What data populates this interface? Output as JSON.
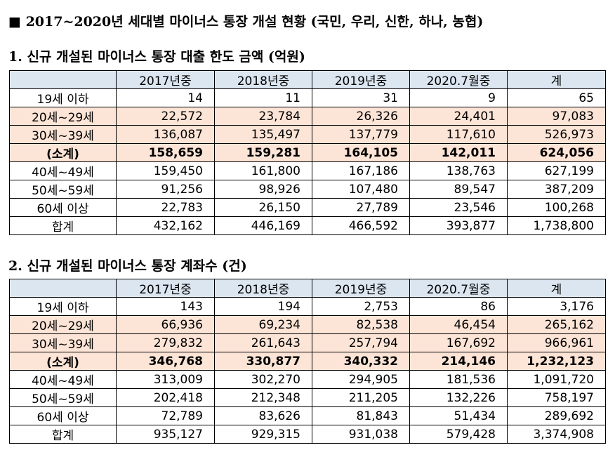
{
  "title": "■ 2017~2020년 세대별 마이너스 통장 개설 현황 (국민, 우리, 신한, 하나, 농협)",
  "tables": [
    {
      "heading": "1. 신규 개설된 마이너스 통장 대출 한도 금액 (억원)",
      "columns": [
        "2017년중",
        "2018년중",
        "2019년중",
        "2020.7월중",
        "계"
      ],
      "rows": [
        [
          "19세 이하",
          "14",
          "11",
          "31",
          "9",
          "65"
        ],
        [
          "20세~29세",
          "22,572",
          "23,784",
          "26,326",
          "24,401",
          "97,083"
        ],
        [
          "30세~39세",
          "136,087",
          "135,497",
          "137,779",
          "117,610",
          "526,973"
        ],
        [
          "(소계)",
          "158,659",
          "159,281",
          "164,105",
          "142,011",
          "624,056"
        ],
        [
          "40세~49세",
          "159,450",
          "161,800",
          "167,186",
          "138,763",
          "627,199"
        ],
        [
          "50세~59세",
          "91,256",
          "98,926",
          "107,480",
          "89,547",
          "387,209"
        ],
        [
          "60세 이상",
          "22,783",
          "26,150",
          "27,789",
          "23,546",
          "100,268"
        ],
        [
          "합계",
          "432,162",
          "446,169",
          "466,592",
          "393,877",
          "1,738,800"
        ]
      ]
    },
    {
      "heading": "2. 신규 개설된 마이너스 통장 계좌수 (건)",
      "columns": [
        "2017년중",
        "2018년중",
        "2019년중",
        "2020.7월중",
        "계"
      ],
      "rows": [
        [
          "19세 이하",
          "143",
          "194",
          "2,753",
          "86",
          "3,176"
        ],
        [
          "20세~29세",
          "66,936",
          "69,234",
          "82,538",
          "46,454",
          "265,162"
        ],
        [
          "30세~39세",
          "279,832",
          "261,643",
          "257,794",
          "167,692",
          "966,961"
        ],
        [
          "(소계)",
          "346,768",
          "330,877",
          "340,332",
          "214,146",
          "1,232,123"
        ],
        [
          "40세~49세",
          "313,009",
          "302,270",
          "294,905",
          "181,536",
          "1,091,720"
        ],
        [
          "50세~59세",
          "202,418",
          "212,348",
          "211,205",
          "132,226",
          "758,197"
        ],
        [
          "60세 이상",
          "72,789",
          "83,626",
          "81,843",
          "51,434",
          "289,692"
        ],
        [
          "합계",
          "935,127",
          "929,315",
          "931,038",
          "579,428",
          "3,374,908"
        ]
      ]
    }
  ]
}
